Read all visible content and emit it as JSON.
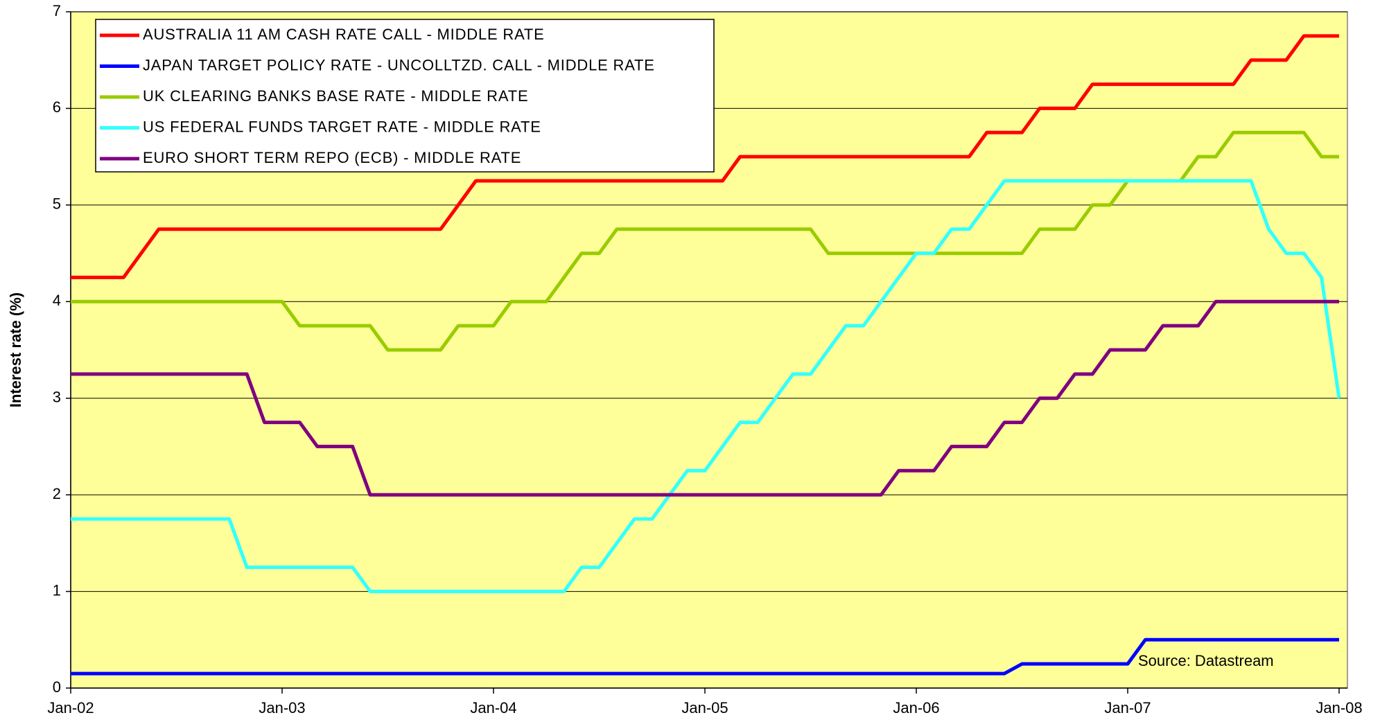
{
  "chart_data": {
    "type": "line",
    "ylabel": "Interest rate (%)",
    "annotation": "Source: Datastream",
    "categories": [
      "Jan-02",
      null,
      null,
      null,
      null,
      null,
      null,
      null,
      null,
      null,
      null,
      null,
      "Jan-03",
      null,
      null,
      null,
      null,
      null,
      null,
      null,
      null,
      null,
      null,
      null,
      "Jan-04",
      null,
      null,
      null,
      null,
      null,
      null,
      null,
      null,
      null,
      null,
      null,
      "Jan-05",
      null,
      null,
      null,
      null,
      null,
      null,
      null,
      null,
      null,
      null,
      null,
      "Jan-06",
      null,
      null,
      null,
      null,
      null,
      null,
      null,
      null,
      null,
      null,
      null,
      "Jan-07",
      null,
      null,
      null,
      null,
      null,
      null,
      null,
      null,
      null,
      null,
      null,
      "Jan-08"
    ],
    "series": [
      {
        "name": "AUSTRALIA 11 AM CASH RATE CALL - MIDDLE RATE",
        "color": "#ff0000",
        "values": [
          4.25,
          4.25,
          4.25,
          4.25,
          4.5,
          4.75,
          4.75,
          4.75,
          4.75,
          4.75,
          4.75,
          4.75,
          4.75,
          4.75,
          4.75,
          4.75,
          4.75,
          4.75,
          4.75,
          4.75,
          4.75,
          4.75,
          5.0,
          5.25,
          5.25,
          5.25,
          5.25,
          5.25,
          5.25,
          5.25,
          5.25,
          5.25,
          5.25,
          5.25,
          5.25,
          5.25,
          5.25,
          5.25,
          5.5,
          5.5,
          5.5,
          5.5,
          5.5,
          5.5,
          5.5,
          5.5,
          5.5,
          5.5,
          5.5,
          5.5,
          5.5,
          5.5,
          5.75,
          5.75,
          5.75,
          6.0,
          6.0,
          6.0,
          6.25,
          6.25,
          6.25,
          6.25,
          6.25,
          6.25,
          6.25,
          6.25,
          6.25,
          6.5,
          6.5,
          6.5,
          6.75,
          6.75,
          6.75
        ]
      },
      {
        "name": "JAPAN TARGET POLICY RATE - UNCOLLTZD. CALL - MIDDLE RATE",
        "color": "#0000ff",
        "values": [
          0.15,
          0.15,
          0.15,
          0.15,
          0.15,
          0.15,
          0.15,
          0.15,
          0.15,
          0.15,
          0.15,
          0.15,
          0.15,
          0.15,
          0.15,
          0.15,
          0.15,
          0.15,
          0.15,
          0.15,
          0.15,
          0.15,
          0.15,
          0.15,
          0.15,
          0.15,
          0.15,
          0.15,
          0.15,
          0.15,
          0.15,
          0.15,
          0.15,
          0.15,
          0.15,
          0.15,
          0.15,
          0.15,
          0.15,
          0.15,
          0.15,
          0.15,
          0.15,
          0.15,
          0.15,
          0.15,
          0.15,
          0.15,
          0.15,
          0.15,
          0.15,
          0.15,
          0.15,
          0.15,
          0.25,
          0.25,
          0.25,
          0.25,
          0.25,
          0.25,
          0.25,
          0.5,
          0.5,
          0.5,
          0.5,
          0.5,
          0.5,
          0.5,
          0.5,
          0.5,
          0.5,
          0.5,
          0.5
        ]
      },
      {
        "name": "UK CLEARING BANKS BASE RATE - MIDDLE RATE",
        "color": "#99cc00",
        "values": [
          4.0,
          4.0,
          4.0,
          4.0,
          4.0,
          4.0,
          4.0,
          4.0,
          4.0,
          4.0,
          4.0,
          4.0,
          4.0,
          3.75,
          3.75,
          3.75,
          3.75,
          3.75,
          3.5,
          3.5,
          3.5,
          3.5,
          3.75,
          3.75,
          3.75,
          4.0,
          4.0,
          4.0,
          4.25,
          4.5,
          4.5,
          4.75,
          4.75,
          4.75,
          4.75,
          4.75,
          4.75,
          4.75,
          4.75,
          4.75,
          4.75,
          4.75,
          4.75,
          4.5,
          4.5,
          4.5,
          4.5,
          4.5,
          4.5,
          4.5,
          4.5,
          4.5,
          4.5,
          4.5,
          4.5,
          4.75,
          4.75,
          4.75,
          5.0,
          5.0,
          5.25,
          5.25,
          5.25,
          5.25,
          5.5,
          5.5,
          5.75,
          5.75,
          5.75,
          5.75,
          5.75,
          5.5,
          5.5
        ]
      },
      {
        "name": "US FEDERAL FUNDS TARGET RATE - MIDDLE RATE",
        "color": "#33ffff",
        "values": [
          1.75,
          1.75,
          1.75,
          1.75,
          1.75,
          1.75,
          1.75,
          1.75,
          1.75,
          1.75,
          1.25,
          1.25,
          1.25,
          1.25,
          1.25,
          1.25,
          1.25,
          1.0,
          1.0,
          1.0,
          1.0,
          1.0,
          1.0,
          1.0,
          1.0,
          1.0,
          1.0,
          1.0,
          1.0,
          1.25,
          1.25,
          1.5,
          1.75,
          1.75,
          2.0,
          2.25,
          2.25,
          2.5,
          2.75,
          2.75,
          3.0,
          3.25,
          3.25,
          3.5,
          3.75,
          3.75,
          4.0,
          4.25,
          4.5,
          4.5,
          4.75,
          4.75,
          5.0,
          5.25,
          5.25,
          5.25,
          5.25,
          5.25,
          5.25,
          5.25,
          5.25,
          5.25,
          5.25,
          5.25,
          5.25,
          5.25,
          5.25,
          5.25,
          4.75,
          4.5,
          4.5,
          4.25,
          3.0
        ]
      },
      {
        "name": "EURO SHORT TERM REPO (ECB) - MIDDLE RATE",
        "color": "#800080",
        "values": [
          3.25,
          3.25,
          3.25,
          3.25,
          3.25,
          3.25,
          3.25,
          3.25,
          3.25,
          3.25,
          3.25,
          2.75,
          2.75,
          2.75,
          2.5,
          2.5,
          2.5,
          2.0,
          2.0,
          2.0,
          2.0,
          2.0,
          2.0,
          2.0,
          2.0,
          2.0,
          2.0,
          2.0,
          2.0,
          2.0,
          2.0,
          2.0,
          2.0,
          2.0,
          2.0,
          2.0,
          2.0,
          2.0,
          2.0,
          2.0,
          2.0,
          2.0,
          2.0,
          2.0,
          2.0,
          2.0,
          2.0,
          2.25,
          2.25,
          2.25,
          2.5,
          2.5,
          2.5,
          2.75,
          2.75,
          3.0,
          3.0,
          3.25,
          3.25,
          3.5,
          3.5,
          3.5,
          3.75,
          3.75,
          3.75,
          4.0,
          4.0,
          4.0,
          4.0,
          4.0,
          4.0,
          4.0,
          4.0
        ]
      }
    ],
    "ylim": [
      0,
      7
    ],
    "yticks": [
      0,
      1,
      2,
      3,
      4,
      5,
      6,
      7
    ],
    "grid": true,
    "legend": "upper left",
    "background": "#ffff99"
  }
}
